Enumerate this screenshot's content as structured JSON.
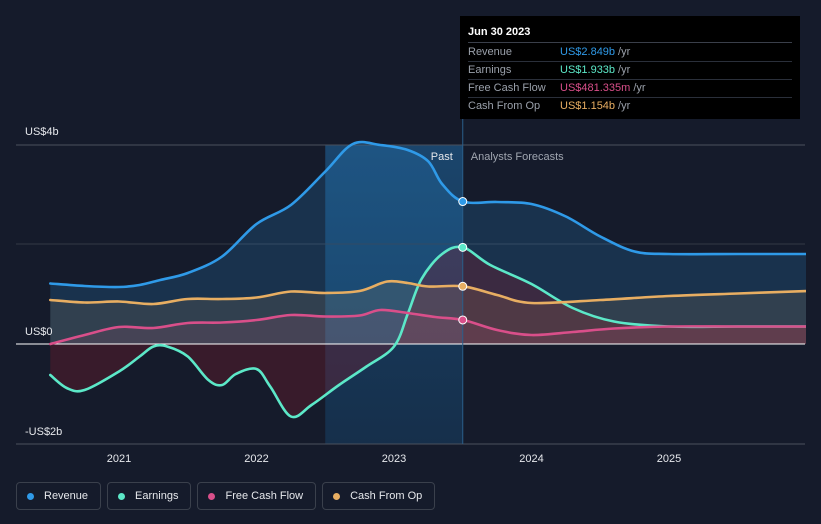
{
  "chart_data": {
    "type": "line",
    "title": "",
    "x_ticks": [
      2021,
      2022,
      2023,
      2024,
      2025
    ],
    "xlim": [
      2020.5,
      2026.0
    ],
    "ylim": [
      -2.0,
      4.0
    ],
    "y_tick_labels": [
      {
        "value": 4,
        "label": "US$4b"
      },
      {
        "value": 0,
        "label": "US$0"
      },
      {
        "value": -2,
        "label": "-US$2b"
      }
    ],
    "divider_x": 2023.5,
    "forecast_band_start": 2022.5,
    "past_label": "Past",
    "forecast_label": "Analysts Forecasts",
    "series": [
      {
        "name": "Revenue",
        "color": "#2f9ae8",
        "points": [
          [
            2020.5,
            1.21
          ],
          [
            2020.75,
            1.16
          ],
          [
            2021.0,
            1.14
          ],
          [
            2021.15,
            1.18
          ],
          [
            2021.3,
            1.28
          ],
          [
            2021.5,
            1.42
          ],
          [
            2021.75,
            1.75
          ],
          [
            2022.0,
            2.4
          ],
          [
            2022.25,
            2.78
          ],
          [
            2022.5,
            3.45
          ],
          [
            2022.7,
            4.0
          ],
          [
            2022.9,
            3.98
          ],
          [
            2023.1,
            3.88
          ],
          [
            2023.25,
            3.65
          ],
          [
            2023.35,
            3.2
          ],
          [
            2023.5,
            2.849
          ],
          [
            2023.75,
            2.84
          ],
          [
            2024.0,
            2.8
          ],
          [
            2024.25,
            2.55
          ],
          [
            2024.5,
            2.15
          ],
          [
            2024.75,
            1.85
          ],
          [
            2025.0,
            1.8
          ],
          [
            2025.5,
            1.8
          ],
          [
            2026.0,
            1.8
          ]
        ]
      },
      {
        "name": "Earnings",
        "color": "#5ce8c8",
        "points": [
          [
            2020.5,
            -0.62
          ],
          [
            2020.62,
            -0.88
          ],
          [
            2020.75,
            -0.92
          ],
          [
            2021.0,
            -0.55
          ],
          [
            2021.15,
            -0.25
          ],
          [
            2021.25,
            -0.05
          ],
          [
            2021.35,
            -0.05
          ],
          [
            2021.5,
            -0.25
          ],
          [
            2021.65,
            -0.72
          ],
          [
            2021.75,
            -0.82
          ],
          [
            2021.85,
            -0.6
          ],
          [
            2022.0,
            -0.5
          ],
          [
            2022.1,
            -0.85
          ],
          [
            2022.25,
            -1.45
          ],
          [
            2022.4,
            -1.22
          ],
          [
            2022.6,
            -0.82
          ],
          [
            2022.8,
            -0.45
          ],
          [
            2023.0,
            -0.05
          ],
          [
            2023.1,
            0.6
          ],
          [
            2023.2,
            1.3
          ],
          [
            2023.35,
            1.8
          ],
          [
            2023.5,
            1.933
          ],
          [
            2023.7,
            1.58
          ],
          [
            2024.0,
            1.2
          ],
          [
            2024.3,
            0.72
          ],
          [
            2024.6,
            0.45
          ],
          [
            2025.0,
            0.35
          ],
          [
            2025.5,
            0.35
          ],
          [
            2026.0,
            0.35
          ]
        ]
      },
      {
        "name": "Free Cash Flow",
        "color": "#d94f8a",
        "points": [
          [
            2020.5,
            0.0
          ],
          [
            2020.75,
            0.18
          ],
          [
            2021.0,
            0.34
          ],
          [
            2021.25,
            0.32
          ],
          [
            2021.5,
            0.42
          ],
          [
            2021.75,
            0.43
          ],
          [
            2022.0,
            0.48
          ],
          [
            2022.25,
            0.58
          ],
          [
            2022.5,
            0.55
          ],
          [
            2022.75,
            0.57
          ],
          [
            2022.9,
            0.68
          ],
          [
            2023.1,
            0.62
          ],
          [
            2023.3,
            0.54
          ],
          [
            2023.5,
            0.481
          ],
          [
            2023.75,
            0.28
          ],
          [
            2024.0,
            0.18
          ],
          [
            2024.3,
            0.24
          ],
          [
            2024.6,
            0.31
          ],
          [
            2025.0,
            0.35
          ],
          [
            2025.5,
            0.35
          ],
          [
            2026.0,
            0.35
          ]
        ]
      },
      {
        "name": "Cash From Op",
        "color": "#e8ae62",
        "points": [
          [
            2020.5,
            0.88
          ],
          [
            2020.75,
            0.83
          ],
          [
            2021.0,
            0.85
          ],
          [
            2021.25,
            0.8
          ],
          [
            2021.5,
            0.9
          ],
          [
            2021.75,
            0.9
          ],
          [
            2022.0,
            0.93
          ],
          [
            2022.25,
            1.05
          ],
          [
            2022.5,
            1.02
          ],
          [
            2022.75,
            1.06
          ],
          [
            2022.95,
            1.25
          ],
          [
            2023.1,
            1.22
          ],
          [
            2023.25,
            1.15
          ],
          [
            2023.5,
            1.154
          ],
          [
            2023.75,
            0.98
          ],
          [
            2024.0,
            0.82
          ],
          [
            2024.5,
            0.88
          ],
          [
            2025.0,
            0.96
          ],
          [
            2025.5,
            1.01
          ],
          [
            2026.0,
            1.06
          ]
        ]
      }
    ],
    "highlight_x": 2023.5
  },
  "tooltip": {
    "date": "Jun 30 2023",
    "rows": [
      {
        "label": "Revenue",
        "value": "US$2.849b",
        "unit": "/yr",
        "color": "#2f9ae8"
      },
      {
        "label": "Earnings",
        "value": "US$1.933b",
        "unit": "/yr",
        "color": "#5ce8c8"
      },
      {
        "label": "Free Cash Flow",
        "value": "US$481.335m",
        "unit": "/yr",
        "color": "#d94f8a"
      },
      {
        "label": "Cash From Op",
        "value": "US$1.154b",
        "unit": "/yr",
        "color": "#e8ae62"
      }
    ]
  },
  "legend": [
    {
      "label": "Revenue",
      "color": "#2f9ae8"
    },
    {
      "label": "Earnings",
      "color": "#5ce8c8"
    },
    {
      "label": "Free Cash Flow",
      "color": "#d94f8a"
    },
    {
      "label": "Cash From Op",
      "color": "#e8ae62"
    }
  ]
}
